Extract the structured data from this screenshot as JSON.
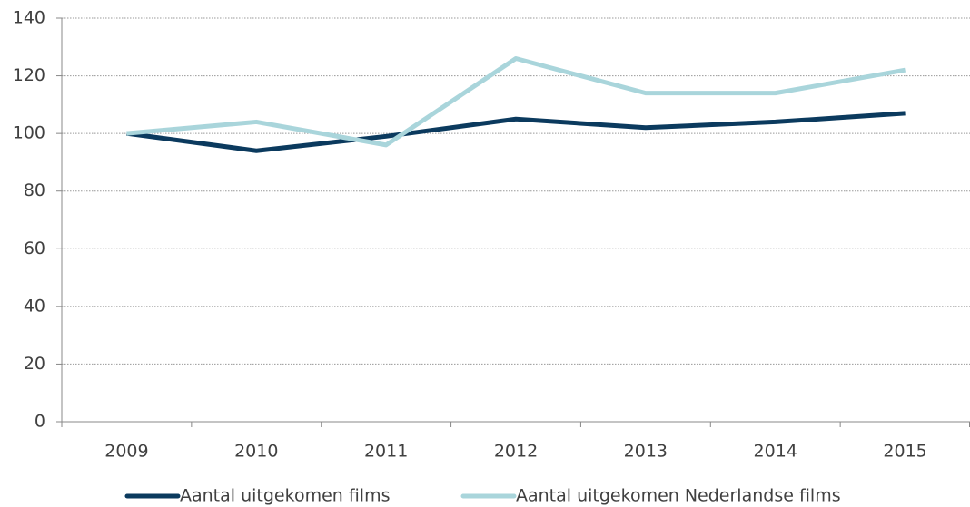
{
  "chart_data": {
    "type": "line",
    "categories": [
      "2009",
      "2010",
      "2011",
      "2012",
      "2013",
      "2014",
      "2015"
    ],
    "series": [
      {
        "name": "Aantal uitgekomen films",
        "color": "#0b3a5e",
        "values": [
          100,
          94,
          99,
          105,
          102,
          104,
          107
        ]
      },
      {
        "name": "Aantal uitgekomen Nederlandse films",
        "color": "#a9d5db",
        "values": [
          100,
          104,
          96,
          126,
          114,
          114,
          122
        ]
      }
    ],
    "ylim": [
      0,
      140
    ],
    "yticks": [
      0,
      20,
      40,
      60,
      80,
      100,
      120,
      140
    ],
    "grid": true,
    "legend": "bottom"
  }
}
